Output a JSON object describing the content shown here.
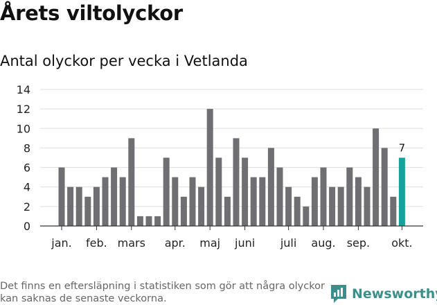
{
  "header": {
    "title": "Årets viltolyckor",
    "subtitle": "Antal olyckor per vecka i Vetlanda"
  },
  "footer": {
    "note": "Det finns en eftersläpning i statistiken som gör att några olyckor kan saknas de senaste veckorna.",
    "brand": "Newsworthy"
  },
  "colors": {
    "bar": "#6e6e73",
    "highlight": "#14a39b",
    "grid": "#dddddd",
    "brand": "#3b8f8a"
  },
  "chart_data": {
    "type": "bar",
    "title": "Antal olyckor per vecka i Vetlanda",
    "xlabel": "",
    "ylabel": "",
    "ylim": [
      0,
      14
    ],
    "yticks": [
      0,
      2,
      4,
      6,
      8,
      10,
      12,
      14
    ],
    "grid": true,
    "weeks": [
      1,
      2,
      3,
      4,
      5,
      6,
      7,
      8,
      9,
      10,
      11,
      12,
      13,
      14,
      15,
      16,
      17,
      18,
      19,
      20,
      21,
      22,
      23,
      24,
      25,
      26,
      27,
      28,
      29,
      30,
      31,
      32,
      33,
      34,
      35,
      36,
      37,
      38,
      39,
      40
    ],
    "values": [
      6,
      4,
      4,
      3,
      4,
      5,
      6,
      5,
      9,
      1,
      1,
      1,
      7,
      5,
      3,
      5,
      4,
      12,
      7,
      3,
      9,
      7,
      5,
      5,
      8,
      6,
      4,
      3,
      2,
      5,
      6,
      4,
      4,
      6,
      5,
      4,
      10,
      8,
      3,
      7
    ],
    "highlight_index": 39,
    "highlight_label": "7",
    "month_labels": [
      {
        "label": "jan.",
        "week": 1
      },
      {
        "label": "feb.",
        "week": 5
      },
      {
        "label": "mars",
        "week": 9
      },
      {
        "label": "apr.",
        "week": 14
      },
      {
        "label": "maj",
        "week": 18
      },
      {
        "label": "juni",
        "week": 22
      },
      {
        "label": "juli",
        "week": 27
      },
      {
        "label": "aug.",
        "week": 31
      },
      {
        "label": "sep.",
        "week": 35
      },
      {
        "label": "okt.",
        "week": 40
      }
    ]
  }
}
